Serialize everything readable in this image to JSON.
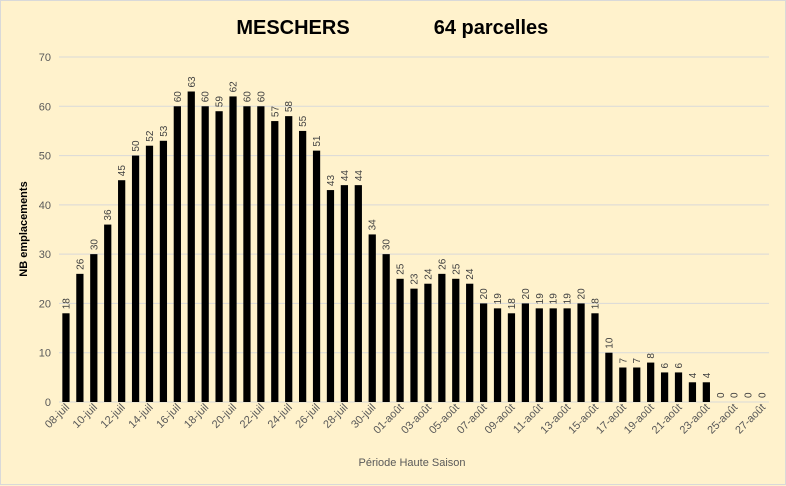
{
  "chart_data": {
    "type": "bar",
    "title_parts": [
      "MESCHERS",
      "64 parcelles"
    ],
    "xlabel": "Période Haute Saison",
    "ylabel": "NB emplacements",
    "ylim": [
      0,
      70
    ],
    "yticks": [
      0,
      10,
      20,
      30,
      40,
      50,
      60,
      70
    ],
    "grid": true,
    "legend": "none",
    "bar_color": "#000000",
    "categories": [
      "08-juil",
      "09-juil",
      "10-juil",
      "11-juil",
      "12-juil",
      "13-juil",
      "14-juil",
      "15-juil",
      "16-juil",
      "17-juil",
      "18-juil",
      "19-juil",
      "20-juil",
      "21-juil",
      "22-juil",
      "23-juil",
      "24-juil",
      "25-juil",
      "26-juil",
      "27-juil",
      "28-juil",
      "29-juil",
      "30-juil",
      "31-juil",
      "01-août",
      "02-août",
      "03-août",
      "04-août",
      "05-août",
      "06-août",
      "07-août",
      "08-août",
      "09-août",
      "10-août",
      "11-août",
      "12-août",
      "13-août",
      "14-août",
      "15-août",
      "16-août",
      "17-août",
      "18-août",
      "19-août",
      "20-août",
      "21-août",
      "22-août",
      "23-août",
      "24-août",
      "25-août",
      "26-août",
      "27-août"
    ],
    "tick_labels_shown_every": 2,
    "values": [
      18,
      26,
      30,
      36,
      45,
      50,
      52,
      53,
      60,
      63,
      60,
      59,
      62,
      60,
      60,
      57,
      58,
      55,
      51,
      43,
      44,
      44,
      34,
      30,
      25,
      23,
      24,
      26,
      25,
      24,
      20,
      19,
      18,
      20,
      19,
      19,
      19,
      20,
      18,
      10,
      7,
      7,
      8,
      6,
      6,
      4,
      4,
      0,
      0,
      0,
      0
    ]
  }
}
